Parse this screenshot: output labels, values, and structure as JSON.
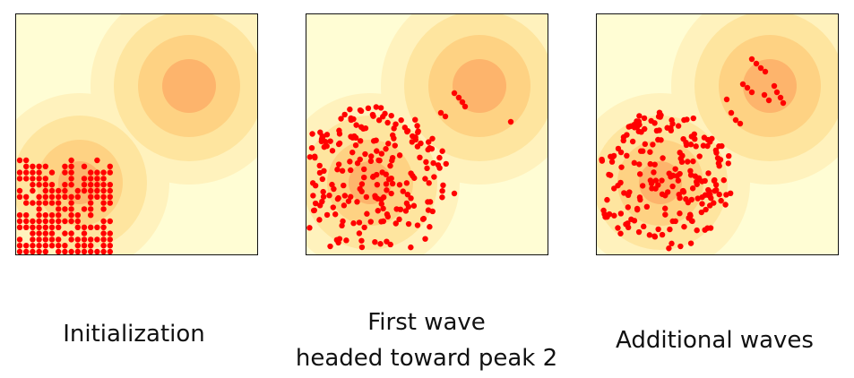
{
  "colors": {
    "levels": [
      "#fffdd4",
      "#fff2bd",
      "#fee59f",
      "#fed283",
      "#fdb46c"
    ],
    "particle": "#ff0000",
    "border": "#111111"
  },
  "panels": [
    {
      "caption_lines": [
        "Initialization"
      ],
      "distribution": "grid-lower-left"
    },
    {
      "caption_lines": [
        "First wave",
        "headed toward peak 2"
      ],
      "distribution": "disk-plus-few"
    },
    {
      "caption_lines": [
        "Additional waves"
      ],
      "distribution": "disk-plus-streaks"
    }
  ]
}
